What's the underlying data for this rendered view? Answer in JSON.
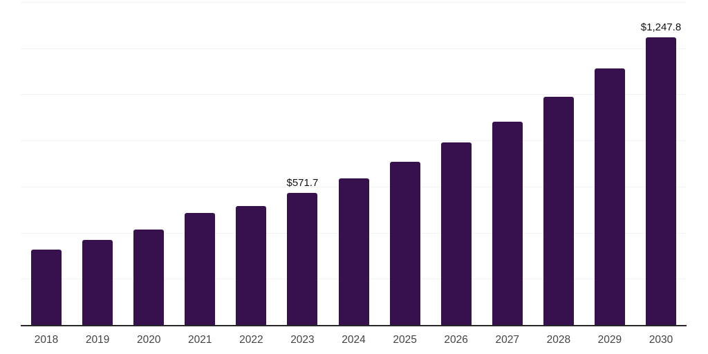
{
  "chart_data": {
    "type": "bar",
    "title": "",
    "xlabel": "",
    "ylabel": "",
    "categories": [
      "2018",
      "2019",
      "2020",
      "2021",
      "2022",
      "2023",
      "2024",
      "2025",
      "2026",
      "2027",
      "2028",
      "2029",
      "2030"
    ],
    "values": [
      327,
      369,
      414,
      485,
      515,
      571.7,
      637,
      709,
      792,
      881,
      989,
      1111,
      1247.8
    ],
    "data_labels": [
      "",
      "",
      "",
      "",
      "",
      "$571.7",
      "",
      "",
      "",
      "",
      "",
      "",
      "$1,247.8"
    ],
    "ylim": [
      0,
      1400
    ],
    "gridline_step": 200,
    "grid": "horizontal-only",
    "legend": "none",
    "y_tick_labels": "none"
  },
  "style": {
    "bar_color": "#36114E",
    "gridline_color": "#f2f2f2",
    "axis_line_color": "#262626",
    "data_label_color": "#111111",
    "x_label_color": "#444444",
    "background_color": "#ffffff"
  }
}
